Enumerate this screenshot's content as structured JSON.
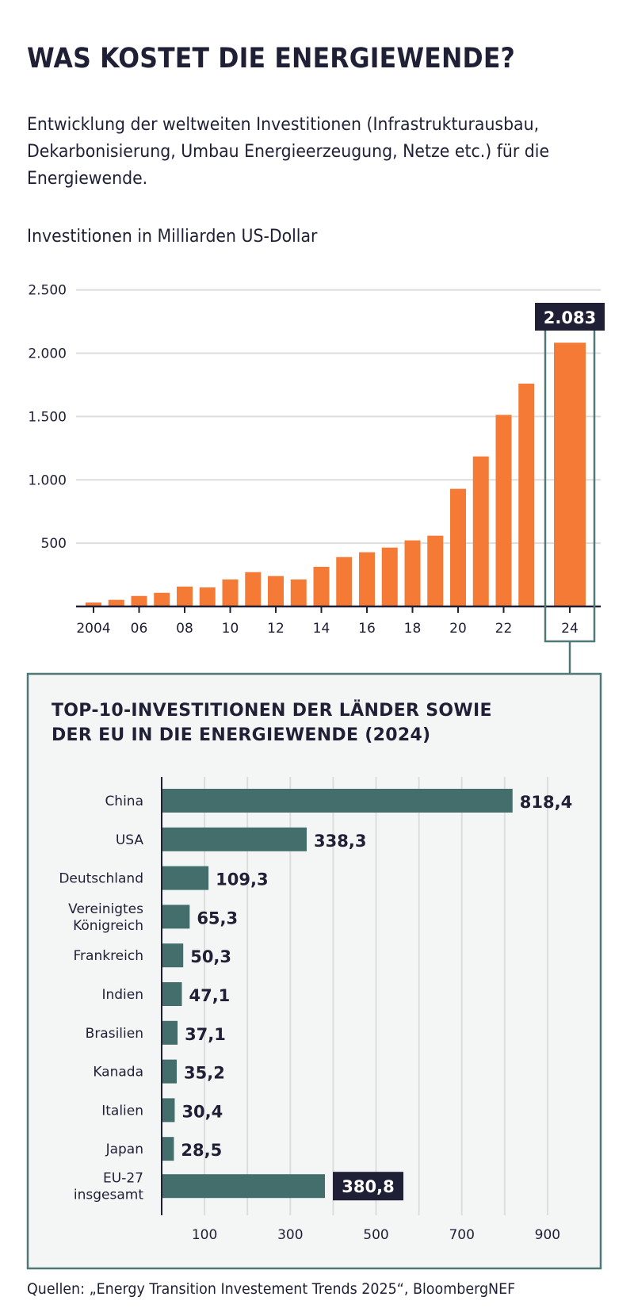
{
  "title": "WAS KOSTET DIE ENERGIEWENDE?",
  "subtitle": "Entwicklung der weltweiten Investitionen (Infrastrukturausbau, Dekarbonisierung, Umbau Energieerzeugung, Netze etc.) für die Energiewende.",
  "source": "Quellen: „Energy Transition Investement Trends 2025“, BloombergNEF",
  "colors": {
    "text": "#1f1f35",
    "orange_bar": "#f47a35",
    "teal_bar": "#436e6c",
    "highlight_border": "#4f7877",
    "panel_bg": "#f4f6f6",
    "label_box": "#1f1f35",
    "gridline": "#dddddd"
  },
  "chart_data": [
    {
      "type": "bar",
      "title": "",
      "ylabel": "Investitionen in Milliarden US-Dollar",
      "xlabel": "",
      "ylim": [
        0,
        2500
      ],
      "yticks": [
        500,
        1000,
        1500,
        2000,
        2500
      ],
      "ytick_labels": [
        "500",
        "1.000",
        "1.500",
        "2.000",
        "2.500"
      ],
      "grid": true,
      "categories": [
        "2004",
        "2005",
        "2006",
        "2007",
        "2008",
        "2009",
        "2010",
        "2011",
        "2012",
        "2013",
        "2014",
        "2015",
        "2016",
        "2017",
        "2018",
        "2019",
        "2020",
        "2021",
        "2022",
        "2023",
        "2024"
      ],
      "xtick_labels": {
        "2004": "2004",
        "2006": "06",
        "2008": "08",
        "2010": "10",
        "2012": "12",
        "2014": "14",
        "2016": "16",
        "2018": "18",
        "2020": "20",
        "2022": "22",
        "2024": "24"
      },
      "values": [
        31,
        52,
        83,
        108,
        157,
        150,
        213,
        271,
        240,
        213,
        313,
        390,
        428,
        465,
        522,
        559,
        929,
        1185,
        1513,
        1760,
        2083
      ],
      "highlight": {
        "category": "2024",
        "label": "2.083"
      }
    },
    {
      "type": "bar",
      "orientation": "horizontal",
      "title": "TOP-10-INVESTITIONEN DER LÄNDER SOWIE DER EU IN DIE ENERGIEWENDE (2024)",
      "title_lines": [
        "TOP-10-INVESTITIONEN DER LÄNDER SOWIE",
        "DER EU IN DIE ENERGIEWENDE (2024)"
      ],
      "xlim": [
        0,
        950
      ],
      "xticks": [
        100,
        300,
        500,
        700,
        900
      ],
      "gridlines": [
        100,
        200,
        300,
        400,
        500,
        600,
        700,
        800,
        900
      ],
      "categories": [
        [
          "China"
        ],
        [
          "USA"
        ],
        [
          "Deutschland"
        ],
        [
          "Vereinigtes",
          "Königreich"
        ],
        [
          "Frankreich"
        ],
        [
          "Indien"
        ],
        [
          "Brasilien"
        ],
        [
          "Kanada"
        ],
        [
          "Italien"
        ],
        [
          "Japan"
        ],
        [
          "EU-27",
          "insgesamt"
        ]
      ],
      "values": [
        818.4,
        338.3,
        109.3,
        65.3,
        50.3,
        47.1,
        37.1,
        35.2,
        30.4,
        28.5,
        380.8
      ],
      "value_labels": [
        "818,4",
        "338,3",
        "109,3",
        "65,3",
        "50,3",
        "47,1",
        "37,1",
        "35,2",
        "30,4",
        "28,5",
        "380,8"
      ],
      "highlight_index": 10
    }
  ]
}
